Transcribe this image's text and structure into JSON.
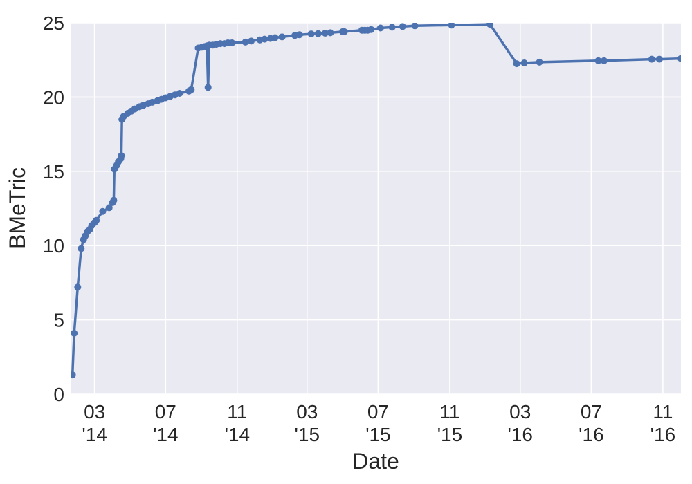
{
  "chart_data": {
    "type": "line",
    "title": "",
    "xlabel": "Date",
    "ylabel": "BMeTric",
    "ylim": [
      0,
      25
    ],
    "yticks": [
      0,
      5,
      10,
      15,
      20,
      25
    ],
    "xlim": [
      "2014-01-20",
      "2016-12-02"
    ],
    "xticks": [
      {
        "date": "2014-03-01",
        "month": "03",
        "year": "'14"
      },
      {
        "date": "2014-07-01",
        "month": "07",
        "year": "'14"
      },
      {
        "date": "2014-11-01",
        "month": "11",
        "year": "'14"
      },
      {
        "date": "2015-03-01",
        "month": "03",
        "year": "'15"
      },
      {
        "date": "2015-07-01",
        "month": "07",
        "year": "'15"
      },
      {
        "date": "2015-11-01",
        "month": "11",
        "year": "'15"
      },
      {
        "date": "2016-03-01",
        "month": "03",
        "year": "'16"
      },
      {
        "date": "2016-07-01",
        "month": "07",
        "year": "'16"
      },
      {
        "date": "2016-11-01",
        "month": "11",
        "year": "'16"
      }
    ],
    "grid": true,
    "legend": false,
    "colors": {
      "plot_bg": "#eaeaf2",
      "grid": "#ffffff",
      "series": "#4c72b0",
      "text": "#262626"
    },
    "series": [
      {
        "name": "BMeTric",
        "marker": "circle",
        "points": [
          [
            "2014-01-22",
            1.3
          ],
          [
            "2014-01-25",
            4.1
          ],
          [
            "2014-01-31",
            7.2
          ],
          [
            "2014-02-06",
            9.8
          ],
          [
            "2014-02-10",
            10.4
          ],
          [
            "2014-02-13",
            10.65
          ],
          [
            "2014-02-17",
            10.95
          ],
          [
            "2014-02-21",
            11.1
          ],
          [
            "2014-02-24",
            11.35
          ],
          [
            "2014-03-01",
            11.55
          ],
          [
            "2014-03-04",
            11.7
          ],
          [
            "2014-03-15",
            12.3
          ],
          [
            "2014-03-26",
            12.55
          ],
          [
            "2014-04-01",
            12.9
          ],
          [
            "2014-04-03",
            13.05
          ],
          [
            "2014-04-04",
            15.15
          ],
          [
            "2014-04-08",
            15.4
          ],
          [
            "2014-04-11",
            15.65
          ],
          [
            "2014-04-15",
            15.85
          ],
          [
            "2014-04-16",
            16.05
          ],
          [
            "2014-04-17",
            18.5
          ],
          [
            "2014-04-20",
            18.7
          ],
          [
            "2014-04-27",
            18.9
          ],
          [
            "2014-05-03",
            19.05
          ],
          [
            "2014-05-09",
            19.2
          ],
          [
            "2014-05-17",
            19.35
          ],
          [
            "2014-05-24",
            19.45
          ],
          [
            "2014-06-01",
            19.55
          ],
          [
            "2014-06-08",
            19.65
          ],
          [
            "2014-06-17",
            19.75
          ],
          [
            "2014-06-24",
            19.85
          ],
          [
            "2014-07-01",
            19.95
          ],
          [
            "2014-07-09",
            20.05
          ],
          [
            "2014-07-17",
            20.15
          ],
          [
            "2014-07-25",
            20.25
          ],
          [
            "2014-08-10",
            20.4
          ],
          [
            "2014-08-14",
            20.5
          ],
          [
            "2014-08-26",
            23.3
          ],
          [
            "2014-09-01",
            23.35
          ],
          [
            "2014-09-06",
            23.4
          ],
          [
            "2014-09-10",
            23.45
          ],
          [
            "2014-09-12",
            20.65
          ],
          [
            "2014-09-14",
            23.5
          ],
          [
            "2014-09-20",
            23.5
          ],
          [
            "2014-09-26",
            23.55
          ],
          [
            "2014-10-03",
            23.6
          ],
          [
            "2014-10-10",
            23.6
          ],
          [
            "2014-10-16",
            23.65
          ],
          [
            "2014-10-23",
            23.65
          ],
          [
            "2014-11-15",
            23.7
          ],
          [
            "2014-11-25",
            23.77
          ],
          [
            "2014-12-10",
            23.85
          ],
          [
            "2014-12-18",
            23.9
          ],
          [
            "2014-12-28",
            23.95
          ],
          [
            "2015-01-05",
            24.0
          ],
          [
            "2015-01-17",
            24.05
          ],
          [
            "2015-02-08",
            24.15
          ],
          [
            "2015-02-16",
            24.2
          ],
          [
            "2015-03-08",
            24.25
          ],
          [
            "2015-03-20",
            24.27
          ],
          [
            "2015-04-01",
            24.3
          ],
          [
            "2015-04-10",
            24.33
          ],
          [
            "2015-05-01",
            24.4
          ],
          [
            "2015-05-04",
            24.4
          ],
          [
            "2015-06-03",
            24.5
          ],
          [
            "2015-06-08",
            24.5
          ],
          [
            "2015-06-13",
            24.5
          ],
          [
            "2015-06-19",
            24.55
          ],
          [
            "2015-07-05",
            24.65
          ],
          [
            "2015-07-25",
            24.7
          ],
          [
            "2015-08-12",
            24.75
          ],
          [
            "2015-09-02",
            24.8
          ],
          [
            "2015-11-04",
            24.85
          ],
          [
            "2016-01-09",
            24.9
          ],
          [
            "2016-02-24",
            22.25
          ],
          [
            "2016-03-08",
            22.3
          ],
          [
            "2016-04-03",
            22.35
          ],
          [
            "2016-07-13",
            22.45
          ],
          [
            "2016-07-23",
            22.45
          ],
          [
            "2016-10-13",
            22.55
          ],
          [
            "2016-10-26",
            22.55
          ],
          [
            "2016-12-02",
            22.6
          ]
        ]
      }
    ]
  }
}
